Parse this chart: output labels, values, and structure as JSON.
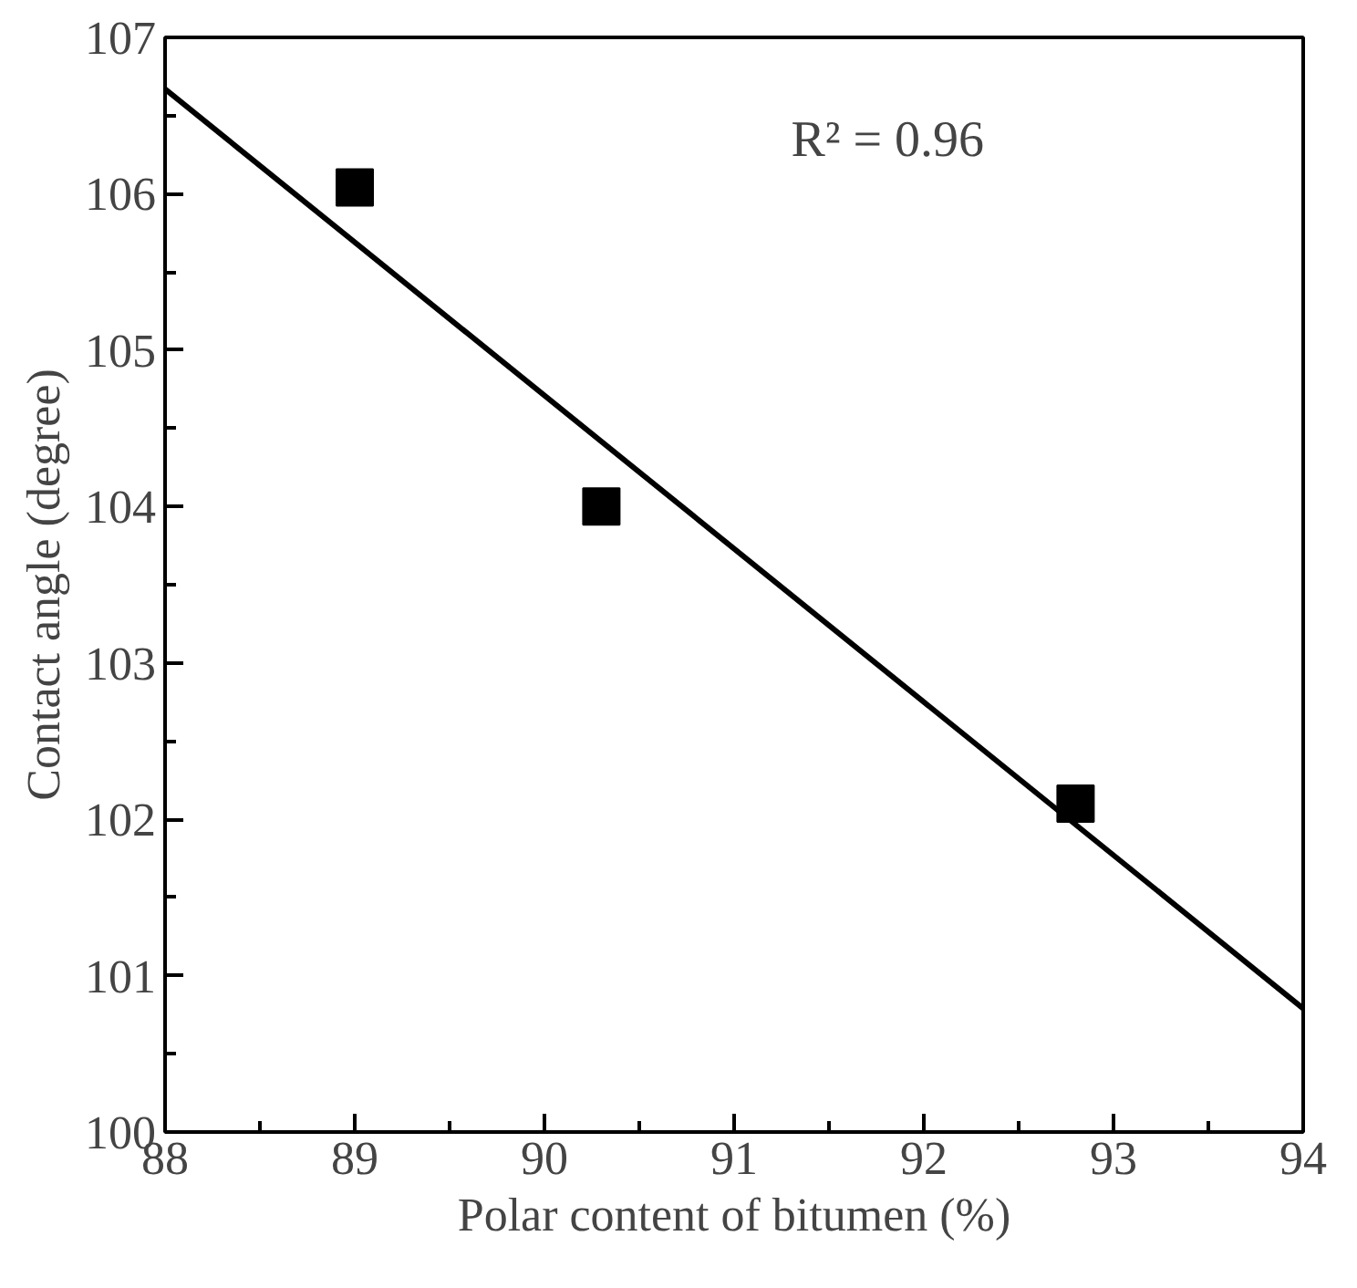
{
  "chart_data": {
    "type": "scatter",
    "xlabel": "Polar content of bitumen (%)",
    "ylabel": "Contact angle (degree)",
    "xlim": [
      88,
      94
    ],
    "xticks": [
      88,
      89,
      90,
      91,
      92,
      93,
      94
    ],
    "ylim": [
      100,
      107
    ],
    "yticks": [
      100,
      101,
      102,
      103,
      104,
      105,
      106,
      107
    ],
    "grid": false,
    "marker": "square",
    "series": [
      {
        "color": "#000000",
        "x": [
          89.0,
          90.3,
          92.8
        ],
        "values": [
          106.04,
          104.0,
          102.1
        ]
      },
      {
        "type": "line",
        "color": "#000000",
        "x": [
          88,
          94
        ],
        "values": [
          106.67,
          100.79
        ],
        "line_style": "solid",
        "marker": "none"
      }
    ],
    "annotations": [
      "R² = 0.96"
    ]
  }
}
